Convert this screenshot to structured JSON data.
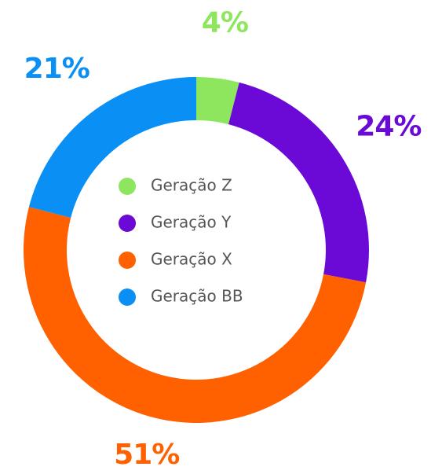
{
  "chart_data": {
    "type": "donut",
    "categories": [
      "Geração Z",
      "Geração Y",
      "Geração X",
      "Geração BB"
    ],
    "values": [
      4,
      24,
      51,
      21
    ],
    "value_labels": [
      "4%",
      "24%",
      "51%",
      "21%"
    ],
    "colors": [
      "#8ee65e",
      "#6b0ad6",
      "#ff6000",
      "#0a8ff5"
    ],
    "legend": "center"
  }
}
